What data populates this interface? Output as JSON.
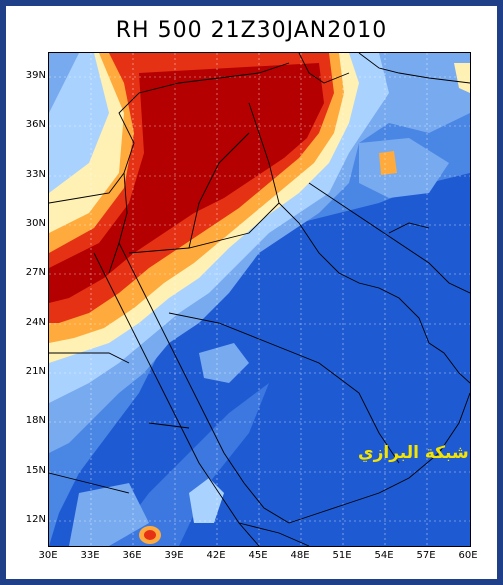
{
  "title": "RH 500  21Z30JAN2010",
  "y_ticks": [
    "39N",
    "36N",
    "33N",
    "30N",
    "27N",
    "24N",
    "21N",
    "18N",
    "15N",
    "12N"
  ],
  "x_ticks": [
    "30E",
    "33E",
    "36E",
    "39E",
    "42E",
    "45E",
    "48E",
    "51E",
    "54E",
    "57E",
    "60E"
  ],
  "watermark": "شبكة البرازي",
  "colors": {
    "frame": "#1f3f88",
    "very_dry": "#1e5ad2",
    "dry": "#3c78e0",
    "medium": "#78aaf0",
    "moist": "#aad2ff",
    "humid_low": "#fff0b4",
    "humid_mid": "#ffaa3c",
    "humid_high": "#e63214",
    "saturated": "#b40000"
  }
}
